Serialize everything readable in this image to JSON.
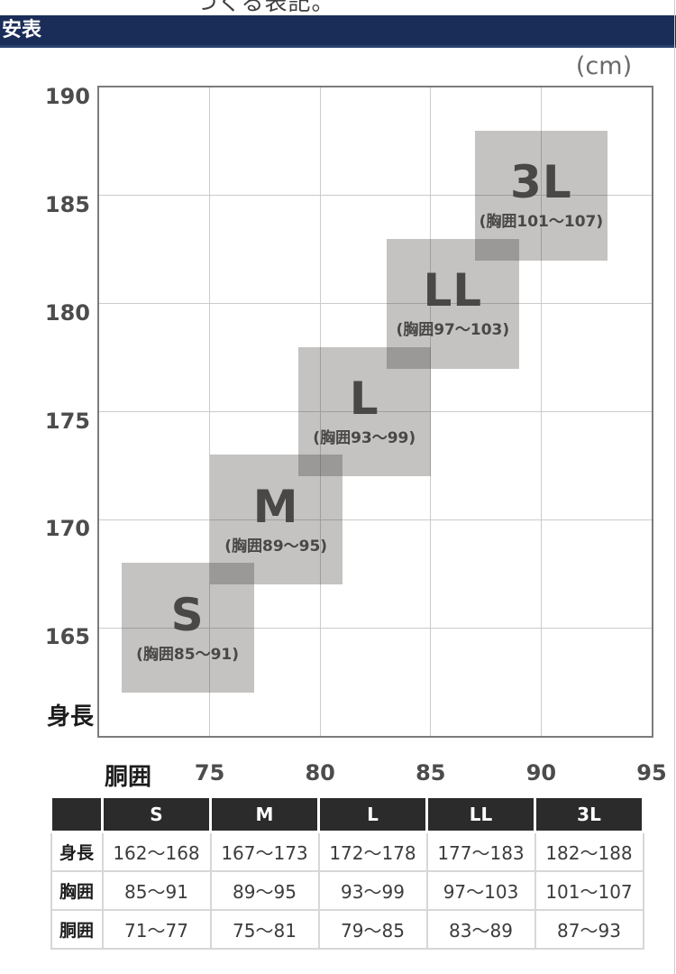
{
  "page": {
    "top_clipped_text": "つくる表記。",
    "banner_title": "安表",
    "unit_label": "(cm)"
  },
  "chart_data": {
    "type": "range-boxes",
    "title": "サイズ目安表",
    "xlabel": "胴囲",
    "ylabel": "身長",
    "xlim": [
      70,
      95
    ],
    "ylim": [
      160,
      190
    ],
    "x_ticks": [
      75,
      80,
      85,
      90,
      95
    ],
    "y_ticks": [
      165,
      170,
      175,
      180,
      185,
      190
    ],
    "x_gridlines": [
      75,
      80,
      85,
      90
    ],
    "y_gridlines": [
      165,
      170,
      175,
      180,
      185
    ],
    "grid": true,
    "box_fill": "rgba(60,56,54,0.30)",
    "sizes": [
      {
        "name": "S",
        "height_range": [
          162,
          168
        ],
        "waist_range": [
          71,
          77
        ],
        "chest_range": [
          85,
          91
        ],
        "chest_label": "(胸囲85～91)"
      },
      {
        "name": "M",
        "height_range": [
          167,
          173
        ],
        "waist_range": [
          75,
          81
        ],
        "chest_range": [
          89,
          95
        ],
        "chest_label": "(胸囲89～95)"
      },
      {
        "name": "L",
        "height_range": [
          172,
          178
        ],
        "waist_range": [
          79,
          85
        ],
        "chest_range": [
          93,
          99
        ],
        "chest_label": "(胸囲93～99)"
      },
      {
        "name": "LL",
        "height_range": [
          177,
          183
        ],
        "waist_range": [
          83,
          89
        ],
        "chest_range": [
          97,
          103
        ],
        "chest_label": "(胸囲97～103)"
      },
      {
        "name": "3L",
        "height_range": [
          182,
          188
        ],
        "waist_range": [
          87,
          93
        ],
        "chest_range": [
          101,
          107
        ],
        "chest_label": "(胸囲101～107)"
      }
    ]
  },
  "table": {
    "header": [
      "",
      "S",
      "M",
      "L",
      "LL",
      "3L"
    ],
    "rows": [
      {
        "label": "身長",
        "values": [
          "162～168",
          "167～173",
          "172～178",
          "177～183",
          "182～188"
        ]
      },
      {
        "label": "胸囲",
        "values": [
          "85～91",
          "89～95",
          "93～99",
          "97～103",
          "101～107"
        ]
      },
      {
        "label": "胴囲",
        "values": [
          "71～77",
          "75～81",
          "79～85",
          "83～89",
          "87～93"
        ]
      }
    ]
  },
  "colors": {
    "banner_bg": "#1a2d58",
    "table_header_bg": "#2b2b2b",
    "grid_line": "#cbcbcb",
    "plot_border": "#7c7c7c",
    "box_text": "#4a4846"
  }
}
